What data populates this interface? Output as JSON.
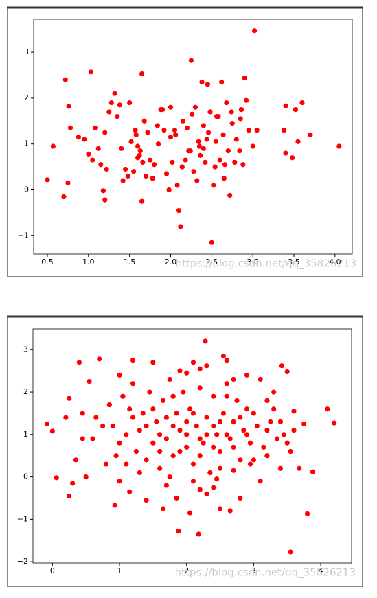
{
  "chart_data": [
    {
      "type": "scatter",
      "color": "#ff0000",
      "annotation": "https://blog.csdn.net/qq_35826213",
      "xlim": [
        0.333,
        4.21
      ],
      "ylim": [
        -1.4,
        3.72
      ],
      "xticks": [
        0.5,
        {
          "value": 1,
          "label": "1.0"
        },
        1.5,
        {
          "value": 2,
          "label": "2.0"
        },
        2.5,
        {
          "value": 3,
          "label": "3.0"
        },
        3.5,
        {
          "value": 4,
          "label": "4.0"
        }
      ],
      "yticks": [
        {
          "value": -1,
          "label": "−1"
        },
        0,
        1,
        2,
        3
      ],
      "x": [
        3.02,
        2.25,
        1.03,
        1.65,
        0.72,
        2.9,
        2.38,
        2.45,
        2.62,
        0.5,
        0.57,
        0.7,
        0.75,
        2.1,
        2.12,
        2.5,
        4.05,
        3.7,
        3.6,
        3.52,
        3.4,
        3.38,
        3.4,
        3.48,
        3.55,
        1.65,
        1.2,
        1.18,
        1.0,
        0.76,
        0.78,
        0.95,
        1.08,
        1.12,
        1.15,
        1.2,
        1.25,
        1.32,
        1.35,
        1.4,
        1.45,
        1.5,
        1.55,
        1.58,
        1.6,
        1.62,
        1.68,
        1.7,
        1.72,
        1.75,
        1.8,
        1.85,
        1.9,
        1.95,
        2.0,
        2.02,
        2.05,
        2.08,
        2.15,
        2.18,
        2.2,
        2.22,
        2.28,
        2.3,
        2.32,
        2.35,
        2.4,
        2.42,
        2.48,
        2.52,
        2.55,
        2.58,
        2.6,
        2.65,
        2.68,
        2.7,
        2.72,
        2.75,
        2.78,
        2.8,
        2.85,
        2.88,
        2.95,
        3.0,
        3.05,
        1.38,
        1.48,
        1.52,
        1.57,
        1.63,
        1.78,
        1.88,
        1.98,
        2.06,
        2.14,
        2.26,
        2.36,
        2.44,
        2.54,
        2.64,
        2.74,
        2.84,
        1.22,
        1.05,
        0.88,
        1.42,
        1.92,
        2.24,
        2.56,
        2.92,
        1.28,
        1.66,
        1.84,
        2.34,
        2.46,
        2.66,
        2.86,
        1.6,
        2.0,
        2.4
      ],
      "values": [
        3.47,
        2.82,
        2.57,
        2.53,
        2.4,
        2.44,
        2.35,
        2.3,
        2.35,
        0.22,
        0.95,
        -0.15,
        0.15,
        -0.45,
        -0.8,
        -1.15,
        0.95,
        1.2,
        1.9,
        1.75,
        1.83,
        1.3,
        0.8,
        0.7,
        1.05,
        -0.25,
        -0.22,
        -0.02,
        0.78,
        1.82,
        1.35,
        1.1,
        1.35,
        0.9,
        0.55,
        1.25,
        1.7,
        2.1,
        1.6,
        0.9,
        0.45,
        1.9,
        0.4,
        1.2,
        0.95,
        0.75,
        1.5,
        0.3,
        1.25,
        0.65,
        0.55,
        1.0,
        1.75,
        0.35,
        1.8,
        0.6,
        1.3,
        0.1,
        1.5,
        0.65,
        1.35,
        0.85,
        0.4,
        1.8,
        0.2,
        0.95,
        1.4,
        0.6,
        1.7,
        0.1,
        1.05,
        1.6,
        0.65,
        0.25,
        1.9,
        0.85,
        -0.12,
        1.45,
        0.6,
        1.1,
        1.55,
        0.55,
        1.3,
        0.95,
        1.3,
        1.85,
        0.3,
        1.05,
        1.3,
        0.85,
        0.25,
        1.75,
        0.0,
        1.2,
        0.5,
        1.65,
        0.75,
        1.1,
        0.5,
        1.2,
        1.7,
        0.85,
        0.45,
        0.65,
        1.15,
        0.2,
        1.3,
        0.85,
        1.6,
        1.95,
        1.9,
        0.6,
        1.4,
        1.05,
        1.25,
        0.55,
        1.75,
        0.7,
        1.15,
        0.9
      ]
    },
    {
      "type": "scatter",
      "color": "#ff0000",
      "annotation": "https://blog.csdn.net/qq_35826213",
      "xlim": [
        -0.29,
        4.46
      ],
      "ylim": [
        -2.03,
        3.49
      ],
      "xticks": [
        0,
        1,
        2,
        3,
        4
      ],
      "yticks": [
        {
          "value": -2,
          "label": "−2"
        },
        {
          "value": -1,
          "label": "−1"
        },
        0,
        1,
        2,
        3
      ],
      "x": [
        2.28,
        3.55,
        3.8,
        1.88,
        2.18,
        -0.08,
        0.0,
        0.06,
        0.25,
        4.1,
        4.2,
        3.88,
        0.4,
        0.7,
        0.93,
        0.25,
        0.3,
        0.2,
        0.45,
        0.55,
        3.42,
        3.5,
        3.3,
        3.6,
        3.75,
        3.68,
        3.55,
        3.2,
        3.1,
        3.0,
        1.2,
        1.5,
        2.1,
        2.3,
        2.55,
        2.6,
        2.65,
        2.9,
        1.65,
        1.4,
        2.05,
        2.5,
        1.0,
        0.6,
        0.8,
        0.5,
        1.15,
        1.3,
        1.7,
        1.85,
        2.2,
        2.4,
        2.7,
        2.8,
        2.95,
        3.15,
        3.25,
        3.35,
        3.45,
        3.3,
        0.75,
        0.85,
        0.95,
        1.05,
        1.1,
        1.2,
        1.25,
        1.35,
        1.45,
        1.5,
        1.55,
        1.6,
        1.65,
        1.7,
        1.75,
        1.8,
        1.85,
        1.9,
        1.95,
        2.0,
        2.05,
        2.1,
        2.15,
        2.2,
        2.25,
        2.3,
        2.35,
        2.4,
        2.45,
        2.5,
        2.55,
        2.6,
        2.65,
        2.7,
        2.75,
        2.8,
        2.85,
        2.9,
        2.95,
        3.05,
        1.0,
        1.1,
        1.3,
        1.4,
        1.6,
        1.8,
        2.0,
        2.2,
        2.4,
        2.6,
        1.5,
        1.7,
        1.9,
        2.1,
        2.3,
        2.5,
        2.7,
        2.9,
        1.2,
        1.4,
        1.6,
        1.8,
        2.0,
        2.2,
        2.4,
        2.6,
        2.8,
        3.0,
        3.2,
        3.4,
        0.35,
        0.45,
        0.65,
        0.9,
        1.0,
        1.15,
        2.1,
        2.3,
        2.5,
        2.7,
        3.1,
        3.2,
        3.4,
        3.5,
        3.6,
        1.9,
        2.0,
        2.2,
        1.75,
        2.45
      ],
      "values": [
        3.2,
        -1.77,
        -0.87,
        -1.28,
        -1.35,
        1.25,
        1.08,
        -0.02,
        -0.45,
        1.6,
        1.27,
        0.12,
        2.7,
        2.78,
        -0.67,
        1.85,
        -0.15,
        1.4,
        1.5,
        2.25,
        2.62,
        2.48,
        2.0,
        1.55,
        1.25,
        0.2,
        0.6,
        1.8,
        -0.1,
        0.4,
        2.75,
        2.7,
        2.7,
        2.62,
        2.85,
        2.75,
        -0.8,
        2.4,
        -0.75,
        -0.55,
        -0.85,
        -0.75,
        -0.1,
        0.9,
        0.3,
        0.0,
        -0.35,
        0.1,
        -0.2,
        -0.5,
        -0.3,
        -0.25,
        0.15,
        -0.5,
        0.3,
        0.7,
        1.3,
        0.9,
        1.0,
        1.6,
        1.2,
        1.7,
        0.5,
        1.9,
        1.0,
        2.2,
        0.6,
        1.5,
        2.0,
        0.8,
        1.3,
        0.2,
        1.8,
        0.9,
        2.3,
        0.5,
        1.5,
        1.1,
        2.0,
        0.7,
        1.6,
        0.3,
        1.2,
        2.1,
        0.8,
        1.4,
        0.1,
        1.9,
        1.0,
        0.6,
        1.5,
        2.2,
        0.9,
        1.3,
        1.8,
        0.4,
        1.1,
        1.6,
        0.8,
        1.2,
        0.8,
        0.3,
        1.1,
        0.4,
        1.0,
        1.2,
        1.3,
        0.9,
        1.2,
        1.0,
        1.6,
        1.4,
        0.6,
        1.5,
        1.0,
        1.3,
        0.7,
        1.0,
        1.4,
        1.2,
        0.6,
        1.9,
        1.0,
        0.5,
        0.7,
        1.9,
        1.4,
        1.5,
        0.5,
        1.3,
        0.4,
        0.9,
        1.4,
        1.2,
        2.4,
        1.6,
        -0.1,
        -0.4,
        0.2,
        2.3,
        2.3,
        1.1,
        0.2,
        0.8,
        1.1,
        2.5,
        2.45,
        2.55,
        0.0,
        -0.05
      ]
    }
  ]
}
